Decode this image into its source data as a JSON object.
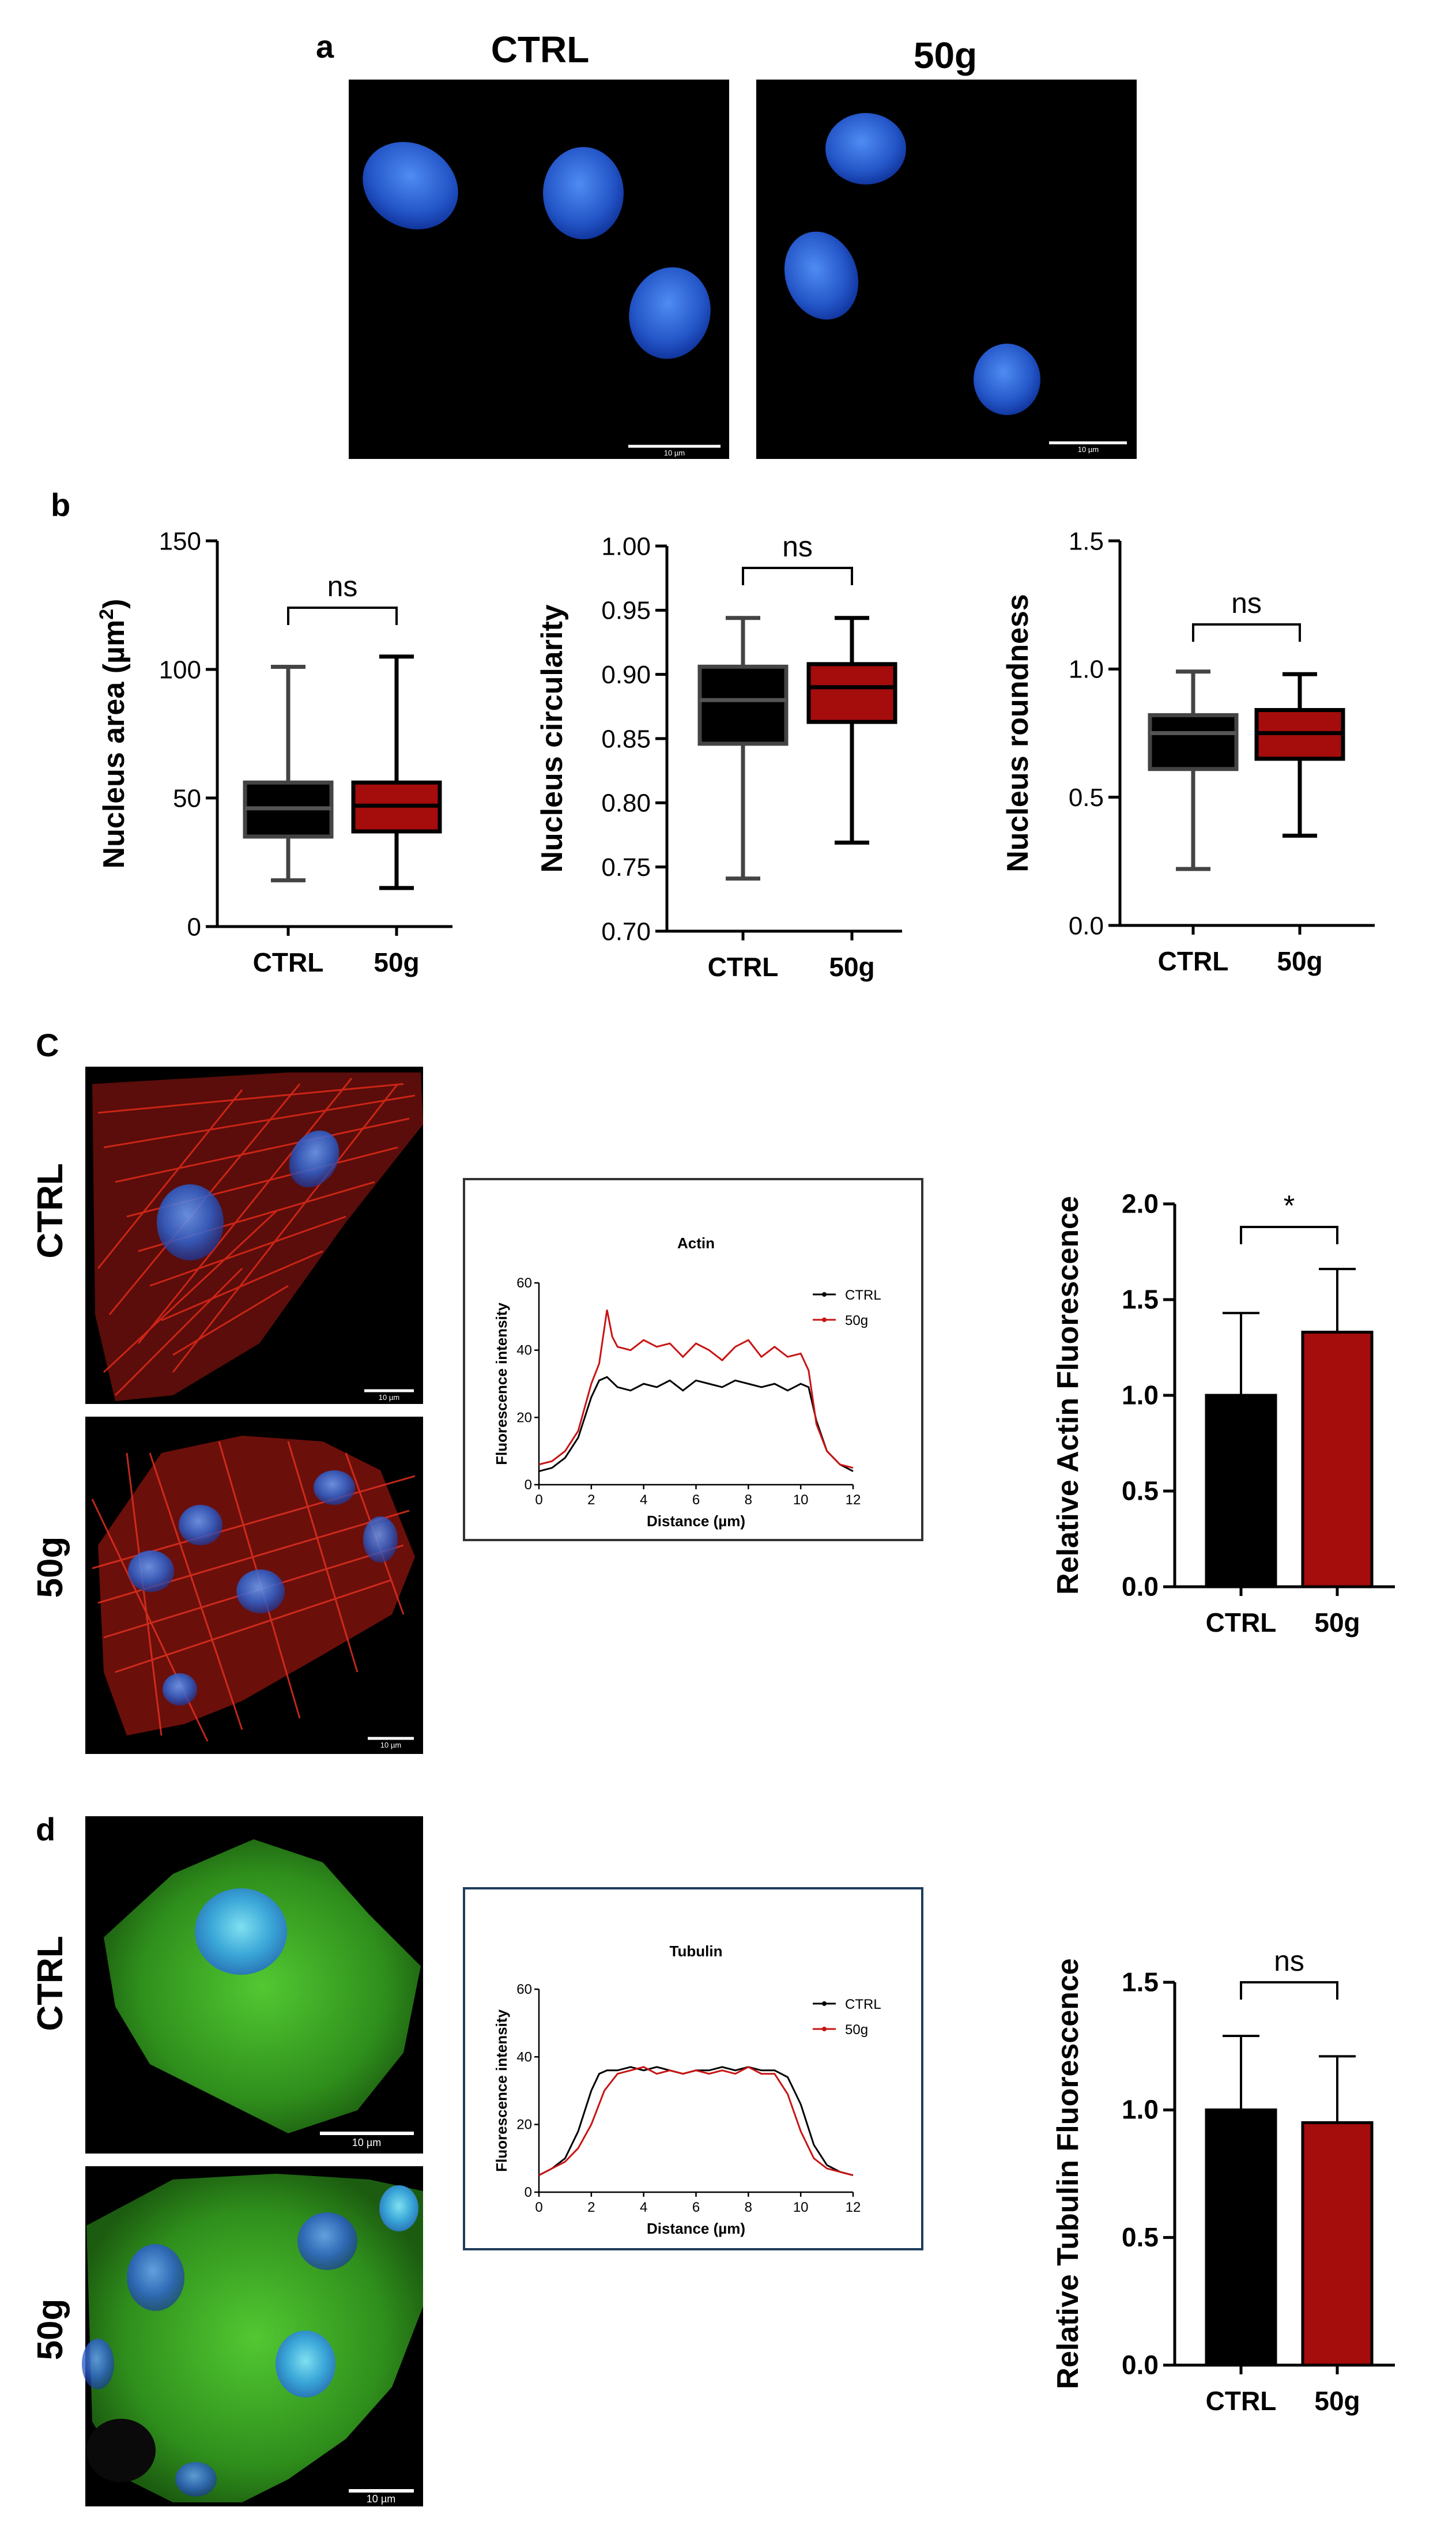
{
  "panels": {
    "a": {
      "letter": "a",
      "columns": [
        "CTRL",
        "50g"
      ],
      "scalebar": "10 µm"
    },
    "b": {
      "letter": "b"
    },
    "c": {
      "letter": "C",
      "rows": [
        "CTRL",
        "50g"
      ],
      "scalebar": "10 µm"
    },
    "d": {
      "letter": "d",
      "rows": [
        "CTRL",
        "50g"
      ],
      "scalebar": "10 µm"
    }
  },
  "colors": {
    "ctrl": "#000000",
    "g50": "#a50c0c",
    "nucleus": "#2f6fe0",
    "actin": "#d82818",
    "tubulin": "#3fb82a"
  },
  "chart_data": [
    {
      "id": "area",
      "type": "box",
      "ylabel": "Nucleus area (µm²)",
      "ylabel_main": "Nucleus area (µm",
      "ylabel_sup": "2",
      "ylabel_end": ")",
      "categories": [
        "CTRL",
        "50g"
      ],
      "ylim": [
        0,
        150
      ],
      "yticks": [
        "0",
        "50",
        "100",
        "150"
      ],
      "boxes": [
        {
          "min": 18,
          "q1": 35,
          "median": 46,
          "q3": 56,
          "max": 101
        },
        {
          "min": 15,
          "q1": 37,
          "median": 47,
          "q3": 56,
          "max": 105
        }
      ],
      "significance": "ns"
    },
    {
      "id": "circularity",
      "type": "box",
      "ylabel": "Nucleus circularity",
      "categories": [
        "CTRL",
        "50g"
      ],
      "ylim": [
        0.7,
        1.0
      ],
      "yticks": [
        "0.70",
        "0.75",
        "0.80",
        "0.85",
        "0.90",
        "0.95",
        "1.00"
      ],
      "boxes": [
        {
          "min": 0.741,
          "q1": 0.846,
          "median": 0.88,
          "q3": 0.906,
          "max": 0.944
        },
        {
          "min": 0.769,
          "q1": 0.863,
          "median": 0.89,
          "q3": 0.908,
          "max": 0.944
        }
      ],
      "significance": "ns"
    },
    {
      "id": "roundness",
      "type": "box",
      "ylabel": "Nucleus roundness",
      "categories": [
        "CTRL",
        "50g"
      ],
      "ylim": [
        0.0,
        1.5
      ],
      "yticks": [
        "0.0",
        "0.5",
        "1.0",
        "1.5"
      ],
      "boxes": [
        {
          "min": 0.22,
          "q1": 0.61,
          "median": 0.75,
          "q3": 0.82,
          "max": 0.99
        },
        {
          "min": 0.35,
          "q1": 0.65,
          "median": 0.75,
          "q3": 0.84,
          "max": 0.98
        }
      ],
      "significance": "ns"
    },
    {
      "id": "actin_profile",
      "type": "line",
      "title": "Actin",
      "xlabel": "Distance (µm)",
      "ylabel": "Fluorescence intensity",
      "xlim": [
        0,
        12
      ],
      "ylim": [
        0,
        60
      ],
      "xticks": [
        "0",
        "2",
        "4",
        "6",
        "8",
        "10",
        "12"
      ],
      "yticks": [
        "0",
        "20",
        "40",
        "60"
      ],
      "series": [
        {
          "name": "CTRL",
          "x": [
            0,
            0.5,
            1,
            1.5,
            2,
            2.3,
            2.6,
            3,
            3.5,
            4,
            4.5,
            5,
            5.5,
            6,
            6.5,
            7,
            7.5,
            8,
            8.5,
            9,
            9.5,
            10,
            10.3,
            10.6,
            11,
            11.5,
            12
          ],
          "y": [
            4,
            5,
            8,
            14,
            26,
            31,
            32,
            29,
            28,
            30,
            29,
            31,
            28,
            31,
            30,
            29,
            31,
            30,
            29,
            30,
            28,
            30,
            29,
            19,
            10,
            6,
            4
          ]
        },
        {
          "name": "50g",
          "x": [
            0,
            0.5,
            1,
            1.5,
            2,
            2.3,
            2.6,
            2.8,
            3,
            3.5,
            4,
            4.5,
            5,
            5.5,
            6,
            6.5,
            7,
            7.5,
            8,
            8.5,
            9,
            9.5,
            10,
            10.3,
            10.6,
            11,
            11.5,
            12
          ],
          "y": [
            6,
            7,
            10,
            16,
            30,
            36,
            52,
            44,
            41,
            40,
            43,
            41,
            42,
            38,
            42,
            40,
            37,
            41,
            43,
            38,
            41,
            38,
            39,
            34,
            18,
            10,
            6,
            5
          ]
        }
      ]
    },
    {
      "id": "actin_bar",
      "type": "bar",
      "ylabel": "Relative Actin Fluorescence",
      "categories": [
        "CTRL",
        "50g"
      ],
      "ylim": [
        0,
        2.0
      ],
      "yticks": [
        "0.0",
        "0.5",
        "1.0",
        "1.5",
        "2.0"
      ],
      "values": [
        1.0,
        1.33
      ],
      "errors": [
        0.43,
        0.33
      ],
      "significance": "*"
    },
    {
      "id": "tubulin_profile",
      "type": "line",
      "title": "Tubulin",
      "xlabel": "Distance (µm)",
      "ylabel": "Fluorescence intensity",
      "xlim": [
        0,
        12
      ],
      "ylim": [
        0,
        60
      ],
      "xticks": [
        "0",
        "2",
        "4",
        "6",
        "8",
        "10",
        "12"
      ],
      "yticks": [
        "0",
        "20",
        "40",
        "60"
      ],
      "series": [
        {
          "name": "CTRL",
          "x": [
            0,
            0.5,
            1,
            1.5,
            2,
            2.3,
            2.6,
            3,
            3.5,
            4,
            4.5,
            5,
            5.5,
            6,
            6.5,
            7,
            7.5,
            8,
            8.5,
            9,
            9.5,
            10,
            10.5,
            11,
            11.5,
            12
          ],
          "y": [
            5,
            7,
            10,
            18,
            30,
            35,
            36,
            36,
            37,
            36,
            37,
            36,
            35,
            36,
            36,
            37,
            36,
            37,
            36,
            36,
            34,
            26,
            14,
            8,
            6,
            5
          ]
        },
        {
          "name": "50g",
          "x": [
            0,
            0.5,
            1,
            1.5,
            2,
            2.5,
            3,
            3.5,
            4,
            4.5,
            5,
            5.5,
            6,
            6.5,
            7,
            7.5,
            8,
            8.5,
            9,
            9.5,
            10,
            10.5,
            11,
            11.5,
            12
          ],
          "y": [
            5,
            7,
            9,
            13,
            20,
            30,
            35,
            36,
            37,
            35,
            36,
            35,
            36,
            35,
            36,
            35,
            37,
            35,
            35,
            29,
            18,
            10,
            7,
            6,
            5
          ]
        }
      ]
    },
    {
      "id": "tubulin_bar",
      "type": "bar",
      "ylabel": "Relative Tubulin Fluorescence",
      "categories": [
        "CTRL",
        "50g"
      ],
      "ylim": [
        0,
        1.5
      ],
      "yticks": [
        "0.0",
        "0.5",
        "1.0",
        "1.5"
      ],
      "values": [
        1.0,
        0.95
      ],
      "errors": [
        0.29,
        0.26
      ],
      "significance": "ns"
    }
  ]
}
